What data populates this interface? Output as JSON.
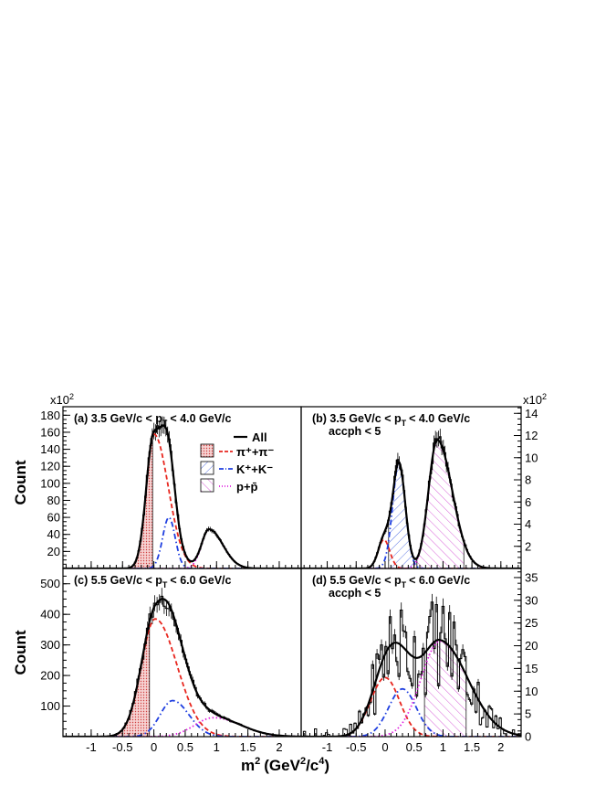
{
  "figure": {
    "ylabel": "Count",
    "xlabel_main": "m",
    "xlabel_sup": "2",
    "xlabel_unit": "(GeV",
    "xlabel_unit_sup": "2",
    "xlabel_unit_mid": "/c",
    "xlabel_unit_sup2": "4",
    "xlabel_close": ")",
    "exp_label_base": "x10",
    "exp_label_sup": "2"
  },
  "legend": {
    "all": "All",
    "pion": "π⁺+π⁻",
    "kaon": "K⁺+K⁻",
    "proton": "p+p̄"
  },
  "colors": {
    "all": "#000000",
    "pion": "#e8261e",
    "kaon": "#1f3fe0",
    "proton": "#e020e0",
    "pion_fill": "#e88a8a",
    "kaon_hatch": "#3355dd",
    "proton_hatch": "#d040d0"
  },
  "chart_data": [
    {
      "id": "a",
      "type": "line",
      "label": "(a) 3.5 GeV/c < p",
      "label_sub": "T",
      "label_tail": "< 4.0 GeV/c",
      "xlim": [
        -1.45,
        2.35
      ],
      "ylim": [
        0,
        190
      ],
      "yticks": [
        20,
        40,
        60,
        80,
        100,
        120,
        140,
        160,
        180
      ],
      "y_multiplier": "x10^2",
      "components": {
        "pion": {
          "amp": 158,
          "mu": 0.0,
          "sigma": 0.12,
          "tail": 0.22
        },
        "kaon": {
          "amp": 60,
          "mu": 0.24,
          "sigma": 0.1,
          "tail": 0.0
        },
        "proton": {
          "amp": 46,
          "mu": 0.88,
          "sigma": 0.12,
          "tail": 0.2
        }
      },
      "shaded": [
        {
          "species": "pion",
          "x": [
            -1.45,
            -0.02
          ]
        }
      ]
    },
    {
      "id": "b",
      "type": "line",
      "label": "(b) 3.5 GeV/c < p",
      "label_sub": "T",
      "label_tail": "< 4.0 GeV/c",
      "label2": "accph < 5",
      "xlim": [
        -1.45,
        2.35
      ],
      "ylim": [
        0,
        14.6
      ],
      "yticks": [
        2,
        4,
        6,
        8,
        10,
        12,
        14
      ],
      "y_multiplier": "x10^2",
      "components": {
        "pion": {
          "amp": 2.6,
          "mu": -0.02,
          "sigma": 0.1,
          "tail": 0.0
        },
        "kaon": {
          "amp": 9.5,
          "mu": 0.24,
          "sigma": 0.11,
          "tail": 0.0
        },
        "proton": {
          "amp": 11.6,
          "mu": 0.9,
          "sigma": 0.15,
          "tail": 0.22
        }
      },
      "shaded": [
        {
          "species": "kaon",
          "x": [
            0.06,
            0.55
          ]
        },
        {
          "species": "proton",
          "x": [
            0.55,
            1.36
          ]
        }
      ]
    },
    {
      "id": "c",
      "type": "line",
      "label": "(c) 5.5 GeV/c < p",
      "label_sub": "T",
      "label_tail": "< 6.0 GeV/c",
      "xlim": [
        -1.45,
        2.35
      ],
      "ylim": [
        0,
        550
      ],
      "yticks": [
        100,
        200,
        300,
        400,
        500
      ],
      "components": {
        "pion": {
          "amp": 385,
          "mu": 0.02,
          "sigma": 0.22,
          "tail": 0.26
        },
        "kaon": {
          "amp": 118,
          "mu": 0.3,
          "sigma": 0.2,
          "tail": 0.12
        },
        "proton": {
          "amp": 62,
          "mu": 0.95,
          "sigma": 0.3,
          "tail": 0.28
        }
      },
      "shaded": [
        {
          "species": "pion",
          "x": [
            -1.45,
            -0.07
          ]
        }
      ]
    },
    {
      "id": "d",
      "type": "line",
      "label": "(d) 5.5 GeV/c < p",
      "label_sub": "T",
      "label_tail": "< 6.0 GeV/c",
      "label2": "accph < 5",
      "xlim": [
        -1.45,
        2.35
      ],
      "ylim": [
        0,
        37
      ],
      "yticks": [
        0,
        5,
        10,
        15,
        20,
        25,
        30,
        35
      ],
      "components": {
        "pion": {
          "amp": 13,
          "mu": 0.0,
          "sigma": 0.25,
          "tail": 0.0
        },
        "kaon": {
          "amp": 10.5,
          "mu": 0.3,
          "sigma": 0.24,
          "tail": 0.0
        },
        "proton": {
          "amp": 21,
          "mu": 0.95,
          "sigma": 0.33,
          "tail": 0.3
        }
      },
      "shaded": [
        {
          "species": "proton",
          "x": [
            0.68,
            1.4
          ]
        }
      ]
    }
  ],
  "xticks": [
    -1,
    -0.5,
    0,
    0.5,
    1,
    1.5,
    2
  ],
  "xtick_labels": [
    "-1",
    "-0.5",
    "0",
    "0.5",
    "1",
    "1.5",
    "2"
  ]
}
